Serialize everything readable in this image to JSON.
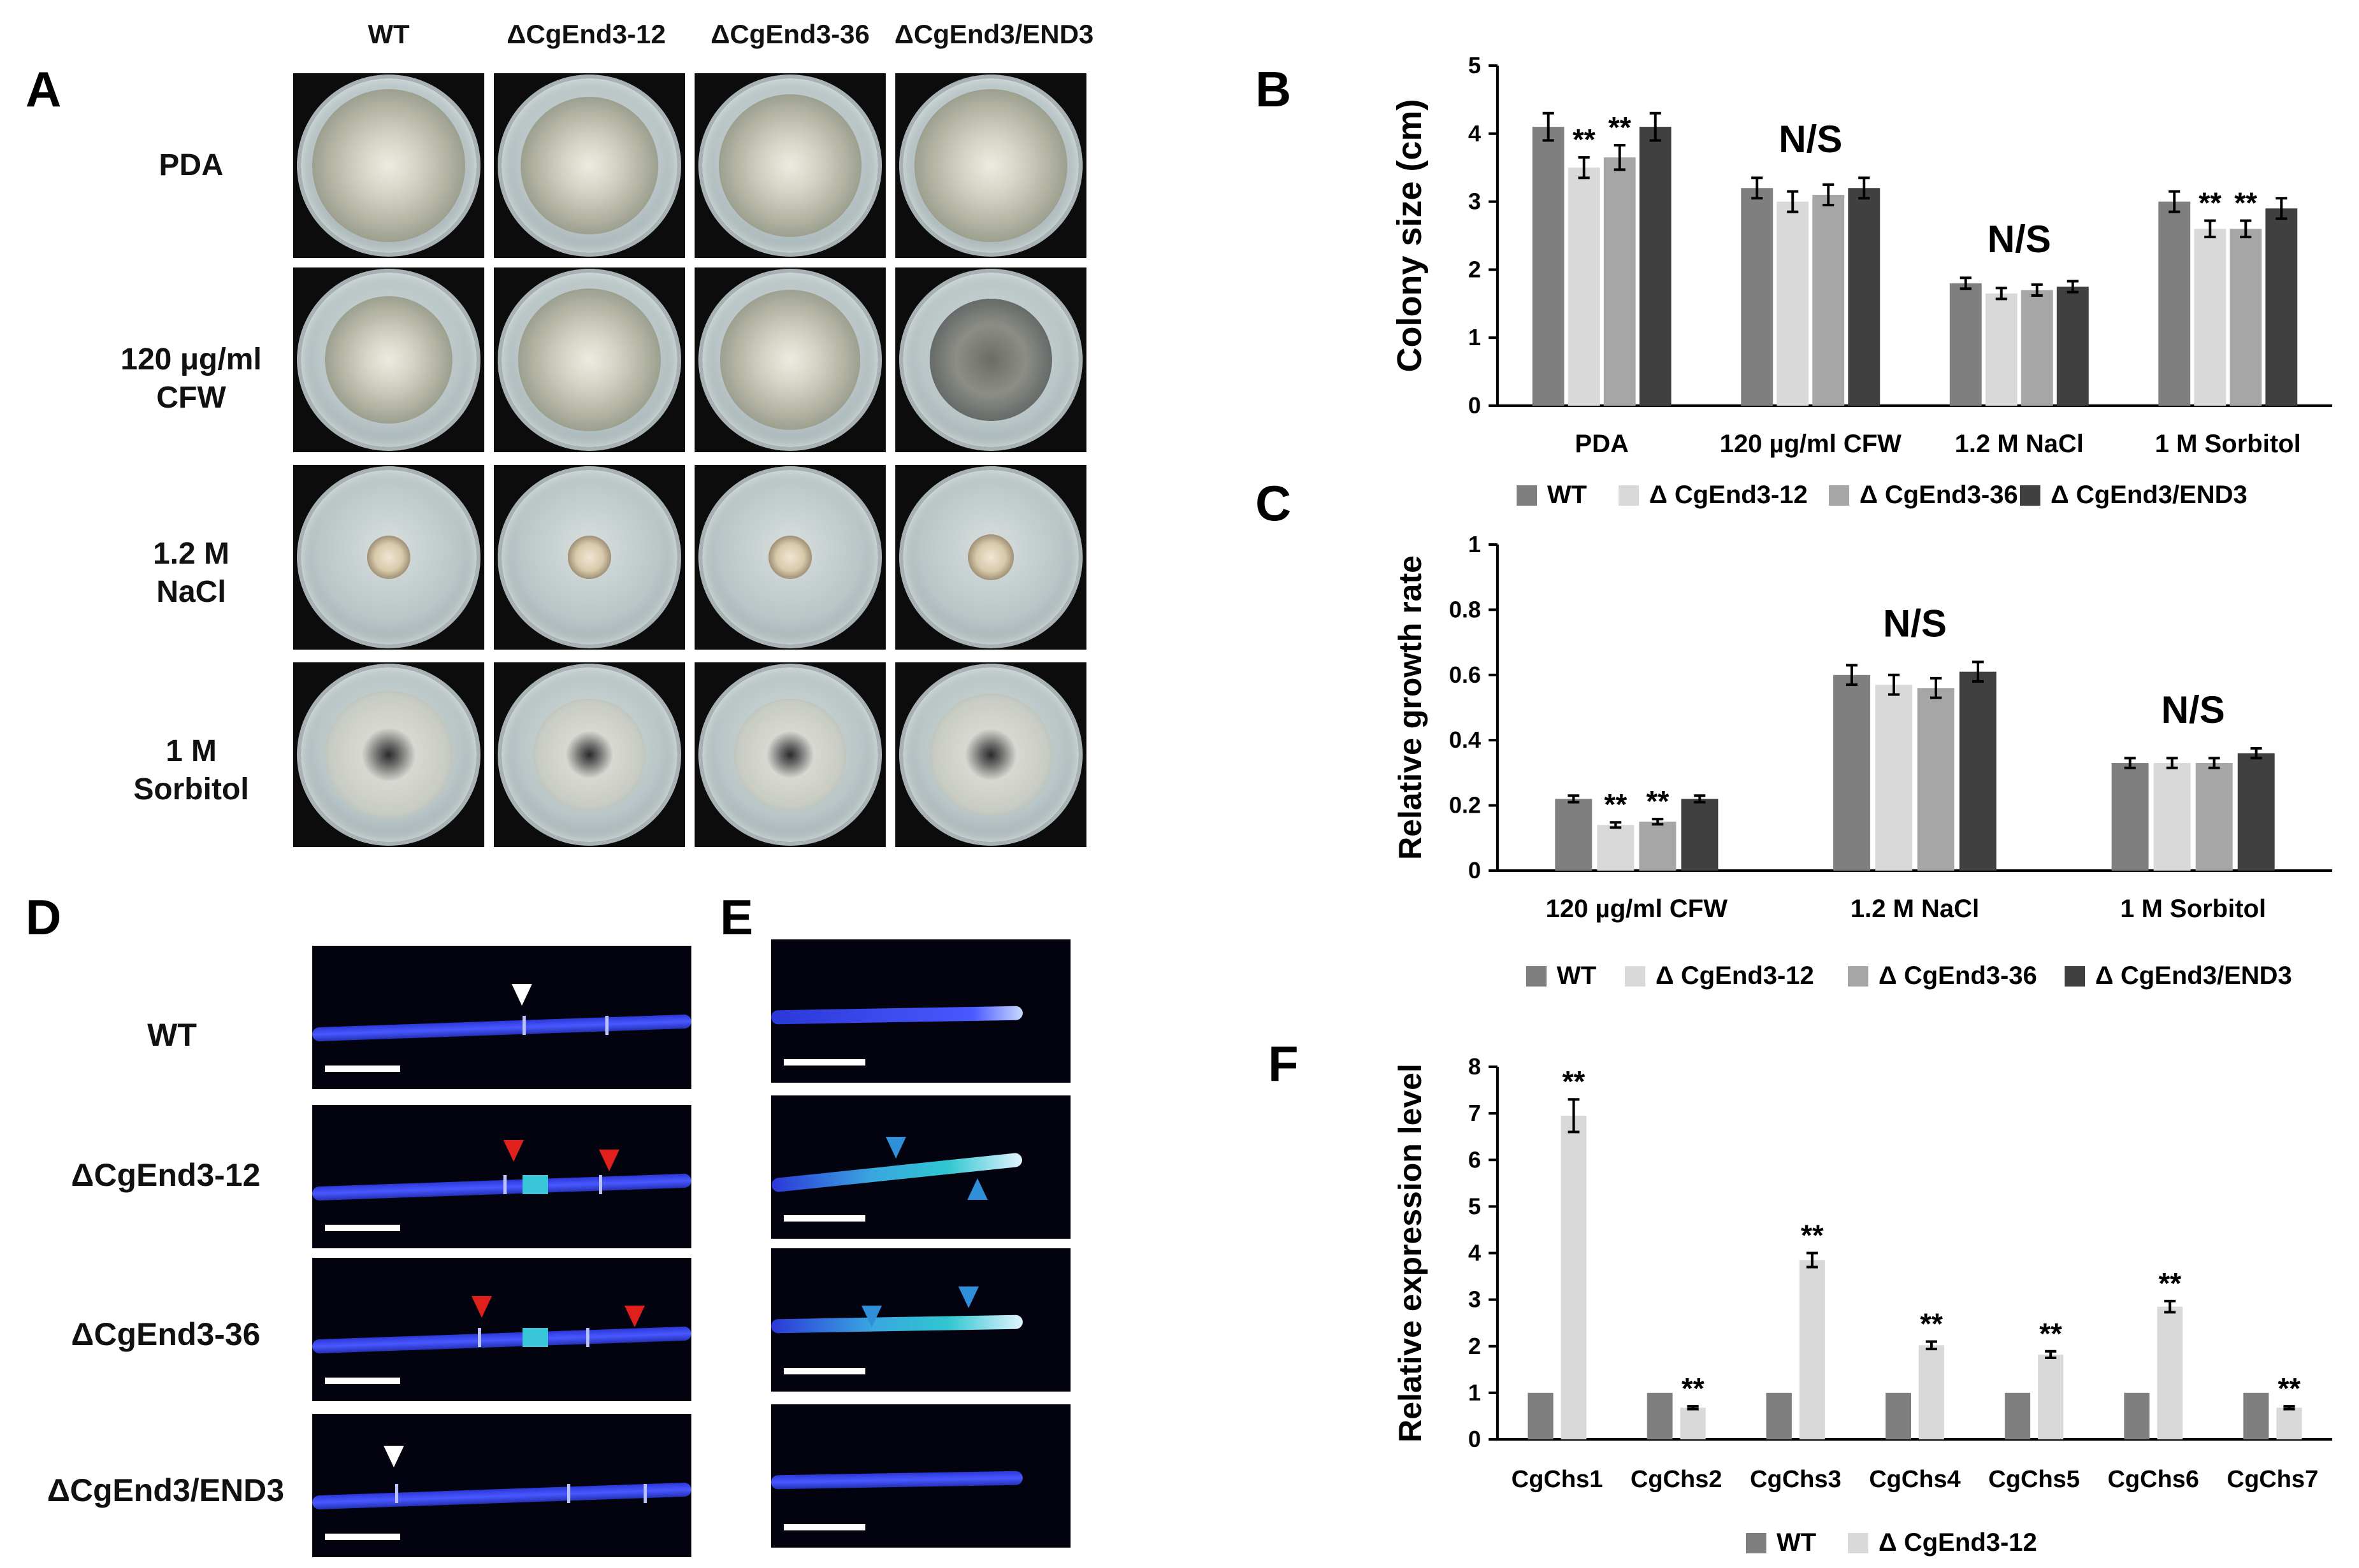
{
  "panels": {
    "A": "A",
    "B": "B",
    "C": "C",
    "D": "D",
    "E": "E",
    "F": "F"
  },
  "panelA": {
    "columns": [
      "WT",
      "ΔCgEnd3-12",
      "ΔCgEnd3-36",
      "ΔCgEnd3/END3"
    ],
    "rows": [
      {
        "line1": "PDA",
        "line2": ""
      },
      {
        "line1": "120 μg/ml",
        "line2": "CFW"
      },
      {
        "line1": "1.2 M",
        "line2": "NaCl"
      },
      {
        "line1": "1 M",
        "line2": "Sorbitol"
      }
    ]
  },
  "panelD": {
    "rows": [
      "WT",
      "ΔCgEnd3-12",
      "ΔCgEnd3-36",
      "ΔCgEnd3/END3"
    ]
  },
  "colors": {
    "wt": "#7f7f7f",
    "m12": "#d9d9d9",
    "m36": "#a6a6a6",
    "comp": "#404040",
    "fluor_blue": "#3c4cff",
    "arrow_white": "#ffffff",
    "arrow_red": "#e0201c",
    "arrow_cyan": "#2f8fd8"
  },
  "chart_data": [
    {
      "panel": "B",
      "type": "bar",
      "ylabel": "Colony size (cm)",
      "ylim": [
        0,
        5
      ],
      "yticks": [
        "0",
        "1",
        "2",
        "3",
        "4",
        "5"
      ],
      "categories": [
        "PDA",
        "120 µg/ml CFW",
        "1.2 M NaCl",
        "1 M Sorbitol"
      ],
      "series": [
        {
          "name": "WT",
          "values": [
            4.1,
            3.2,
            1.8,
            3.0
          ],
          "errors": [
            0.2,
            0.15,
            0.08,
            0.15
          ]
        },
        {
          "name": "Δ CgEnd3-12",
          "values": [
            3.5,
            3.0,
            1.65,
            2.6
          ],
          "errors": [
            0.15,
            0.15,
            0.08,
            0.12
          ]
        },
        {
          "name": "Δ CgEnd3-36",
          "values": [
            3.65,
            3.1,
            1.7,
            2.6
          ],
          "errors": [
            0.18,
            0.15,
            0.08,
            0.12
          ]
        },
        {
          "name": "Δ CgEnd3/END3",
          "values": [
            4.1,
            3.2,
            1.75,
            2.9
          ],
          "errors": [
            0.2,
            0.15,
            0.08,
            0.15
          ]
        }
      ],
      "significance": [
        {
          "category": 0,
          "series": 1,
          "text": "**"
        },
        {
          "category": 0,
          "series": 2,
          "text": "**"
        },
        {
          "category": 3,
          "series": 1,
          "text": "**"
        },
        {
          "category": 3,
          "series": 2,
          "text": "**"
        }
      ],
      "group_labels": [
        {
          "category": 1,
          "text": "N/S"
        },
        {
          "category": 2,
          "text": "N/S"
        }
      ],
      "legend_position": "bottom"
    },
    {
      "panel": "C",
      "type": "bar",
      "ylabel": "Relative growth rate",
      "ylim": [
        0,
        1
      ],
      "yticks": [
        "0",
        "0.2",
        "0.4",
        "0.6",
        "0.8",
        "1"
      ],
      "categories": [
        "120 µg/ml CFW",
        "1.2 M NaCl",
        "1 M Sorbitol"
      ],
      "series": [
        {
          "name": "WT",
          "values": [
            0.22,
            0.6,
            0.33
          ],
          "errors": [
            0.01,
            0.03,
            0.015
          ]
        },
        {
          "name": "Δ CgEnd3-12",
          "values": [
            0.14,
            0.57,
            0.33
          ],
          "errors": [
            0.008,
            0.03,
            0.015
          ]
        },
        {
          "name": "Δ CgEnd3-36",
          "values": [
            0.15,
            0.56,
            0.33
          ],
          "errors": [
            0.008,
            0.03,
            0.015
          ]
        },
        {
          "name": "Δ CgEnd3/END3",
          "values": [
            0.22,
            0.61,
            0.36
          ],
          "errors": [
            0.01,
            0.03,
            0.015
          ]
        }
      ],
      "significance": [
        {
          "category": 0,
          "series": 1,
          "text": "**"
        },
        {
          "category": 0,
          "series": 2,
          "text": "**"
        }
      ],
      "group_labels": [
        {
          "category": 1,
          "text": "N/S"
        },
        {
          "category": 2,
          "text": "N/S"
        }
      ],
      "legend_position": "bottom"
    },
    {
      "panel": "F",
      "type": "bar",
      "ylabel": "Relative expression level",
      "ylim": [
        0,
        8
      ],
      "yticks": [
        "0",
        "1",
        "2",
        "3",
        "4",
        "5",
        "6",
        "7",
        "8"
      ],
      "categories": [
        "CgChs1",
        "CgChs2",
        "CgChs3",
        "CgChs4",
        "CgChs5",
        "CgChs6",
        "CgChs7"
      ],
      "series": [
        {
          "name": "WT",
          "values": [
            1,
            1,
            1,
            1,
            1,
            1,
            1
          ],
          "errors": [
            0,
            0,
            0,
            0,
            0,
            0,
            0
          ]
        },
        {
          "name": "Δ CgEnd3-12",
          "values": [
            6.95,
            0.68,
            3.85,
            2.02,
            1.82,
            2.85,
            0.68
          ],
          "errors": [
            0.35,
            0.03,
            0.15,
            0.08,
            0.07,
            0.12,
            0.03
          ]
        }
      ],
      "significance": [
        {
          "category": 0,
          "series": 1,
          "text": "**"
        },
        {
          "category": 1,
          "series": 1,
          "text": "**"
        },
        {
          "category": 2,
          "series": 1,
          "text": "**"
        },
        {
          "category": 3,
          "series": 1,
          "text": "**"
        },
        {
          "category": 4,
          "series": 1,
          "text": "**"
        },
        {
          "category": 5,
          "series": 1,
          "text": "**"
        },
        {
          "category": 6,
          "series": 1,
          "text": "**"
        }
      ],
      "group_labels": [],
      "legend_position": "bottom"
    }
  ]
}
